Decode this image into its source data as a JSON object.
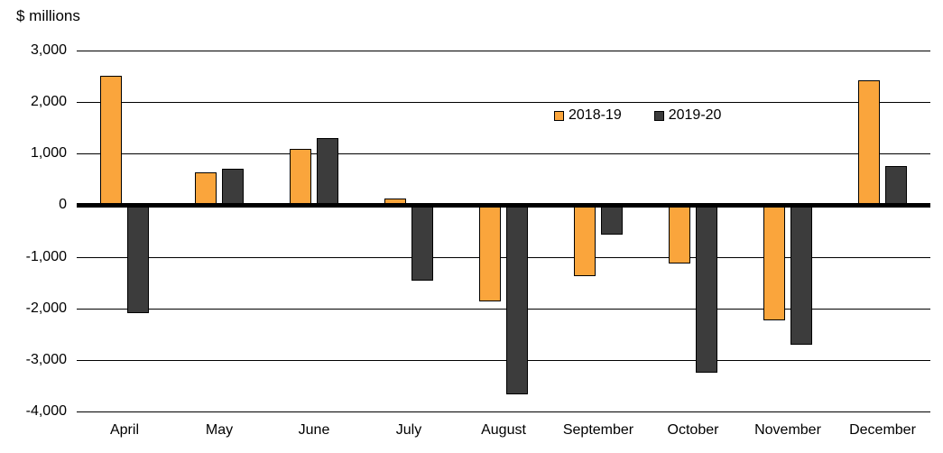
{
  "chart_data": {
    "type": "bar",
    "title": "",
    "ylabel": "$ millions",
    "xlabel": "",
    "categories": [
      "April",
      "May",
      "June",
      "July",
      "August",
      "September",
      "October",
      "November",
      "December"
    ],
    "series": [
      {
        "name": "2018-19",
        "color": "#FAA53C",
        "values": [
          2510,
          630,
          1090,
          130,
          -1880,
          -1390,
          -1130,
          -2240,
          2420
        ]
      },
      {
        "name": "2019-20",
        "color": "#3C3C3C",
        "values": [
          -2100,
          700,
          1300,
          -1470,
          -3680,
          -580,
          -3260,
          -2710,
          760
        ]
      }
    ],
    "ylim": [
      -4000,
      3000
    ],
    "ytick_step": 1000,
    "yticks": [
      3000,
      2000,
      1000,
      0,
      -1000,
      -2000,
      -3000,
      -4000
    ],
    "ytick_labels": [
      "3,000",
      "2,000",
      "1,000",
      "0",
      "-1,000",
      "-2,000",
      "-3,000",
      "-4,000"
    ],
    "grid": "horizontal",
    "gridline_color": "#000000",
    "zero_axis_color": "#000000",
    "bar_border_color": "#000000",
    "legend_position": "inside-top-right",
    "background_color": "#FFFFFF"
  }
}
